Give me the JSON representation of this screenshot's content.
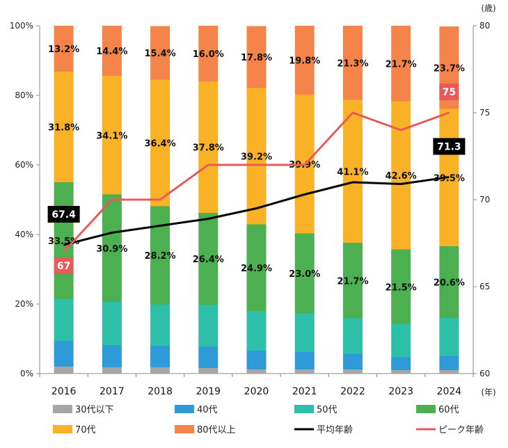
{
  "chart_data": {
    "type": "bar",
    "stacked": true,
    "categories": [
      "2016",
      "2017",
      "2018",
      "2019",
      "2020",
      "2021",
      "2022",
      "2023",
      "2024"
    ],
    "ylim": [
      0,
      100
    ],
    "y2lim": [
      60,
      80
    ],
    "yticks": [
      "0%",
      "20%",
      "40%",
      "60%",
      "80%",
      "100%"
    ],
    "y2ticks": [
      "60",
      "65",
      "70",
      "75",
      "80"
    ],
    "y2unit": "(歳)",
    "xunit": "(年)",
    "colors": {
      "30代以下": "#a6a6a6",
      "40代": "#2e9bd8",
      "50代": "#2dbfa8",
      "60代": "#4caf50",
      "70代": "#f9b126",
      "80代以上": "#f5844a",
      "平均年齢": "#000000",
      "ピーク年齢": "#e85a5a"
    },
    "series": [
      {
        "name": "30代以下",
        "values": [
          2.0,
          1.8,
          1.8,
          1.6,
          1.2,
          1.2,
          1.2,
          1.0,
          1.0
        ]
      },
      {
        "name": "40代",
        "values": [
          7.4,
          6.4,
          6.2,
          6.1,
          5.4,
          5.0,
          4.5,
          3.7,
          4.0
        ]
      },
      {
        "name": "50代",
        "values": [
          12.1,
          12.4,
          11.9,
          12.1,
          11.4,
          11.1,
          10.2,
          9.5,
          11.0
        ]
      },
      {
        "name": "60代",
        "values": [
          33.5,
          30.9,
          28.2,
          26.4,
          24.9,
          23.0,
          21.7,
          21.5,
          20.6
        ]
      },
      {
        "name": "70代",
        "values": [
          31.8,
          34.1,
          36.4,
          37.8,
          39.2,
          39.9,
          41.1,
          42.6,
          39.5
        ]
      },
      {
        "name": "80代以上",
        "values": [
          13.2,
          14.4,
          15.4,
          16.0,
          17.8,
          19.8,
          21.3,
          21.7,
          23.7
        ]
      }
    ],
    "labels": {
      "60代": [
        "33.5%",
        "30.9%",
        "28.2%",
        "26.4%",
        "24.9%",
        "23.0%",
        "21.7%",
        "21.5%",
        "20.6%"
      ],
      "70代": [
        "31.8%",
        "34.1%",
        "36.4%",
        "37.8%",
        "39.2%",
        "39.9%",
        "41.1%",
        "42.6%",
        "39.5%"
      ],
      "80代以上": [
        "13.2%",
        "14.4%",
        "15.4%",
        "16.0%",
        "17.8%",
        "19.8%",
        "21.3%",
        "21.7%",
        "23.7%"
      ]
    },
    "lines": [
      {
        "name": "平均年齢",
        "axis": "right",
        "values": [
          67.4,
          68.1,
          68.5,
          68.9,
          69.5,
          70.3,
          71.0,
          70.9,
          71.3
        ]
      },
      {
        "name": "ピーク年齢",
        "axis": "right",
        "values": [
          67,
          70,
          70,
          72,
          72,
          72,
          75,
          74,
          75
        ]
      }
    ],
    "callouts": [
      {
        "series": "平均年齢",
        "index": 0,
        "text": "67.4"
      },
      {
        "series": "平均年齢",
        "index": 8,
        "text": "71.3"
      },
      {
        "series": "ピーク年齢",
        "index": 0,
        "text": "67"
      },
      {
        "series": "ピーク年齢",
        "index": 8,
        "text": "75"
      }
    ],
    "legend": [
      "30代以下",
      "40代",
      "50代",
      "60代",
      "70代",
      "80代以上",
      "平均年齢",
      "ピーク年齢"
    ],
    "legend_position": "bottom"
  }
}
